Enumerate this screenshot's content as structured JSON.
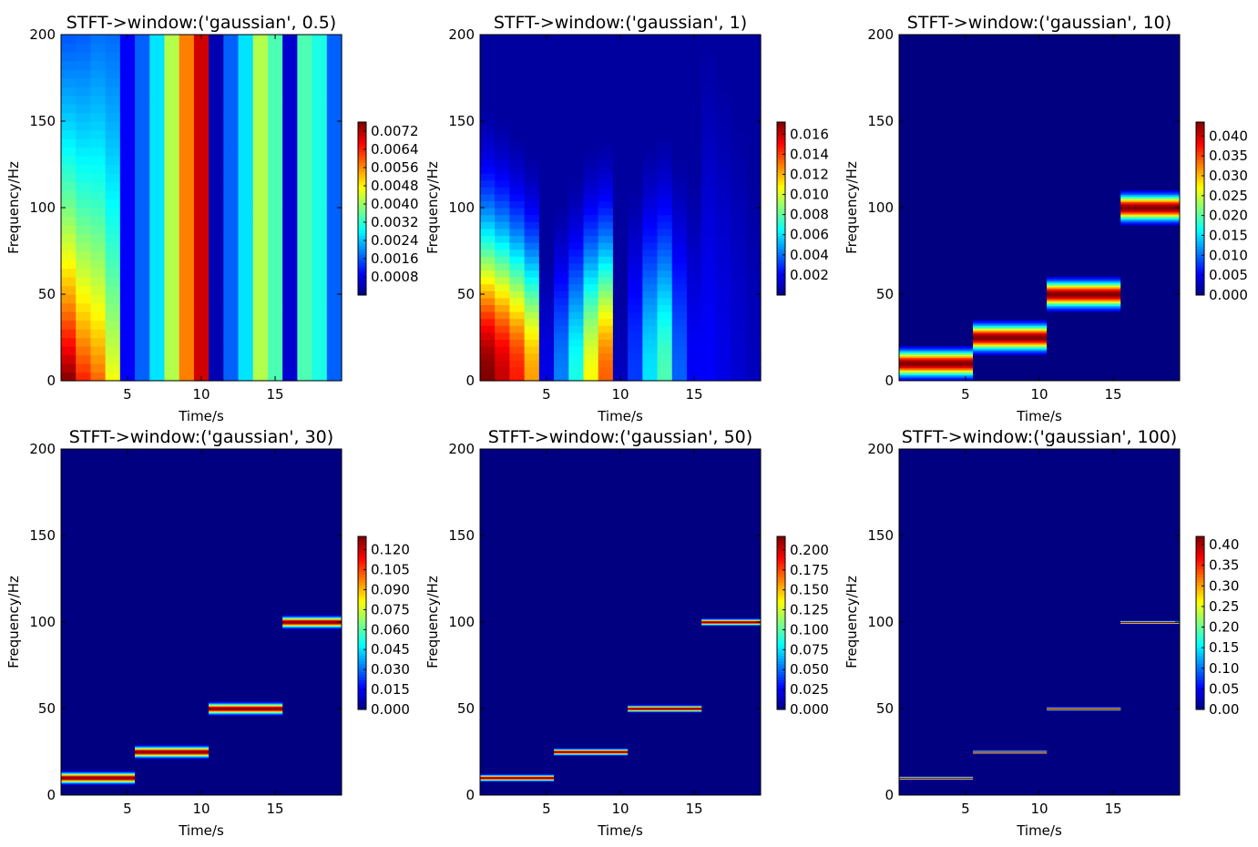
{
  "colors": {
    "jet_low": "#00007f",
    "jet_high": "#7f0000",
    "background": "#ffffff"
  },
  "chart_data": [
    {
      "type": "heatmap",
      "title": "STFT->window:('gaussian', 0.5)",
      "xlabel": "Time/s",
      "ylabel": "Frequency/Hz",
      "xticks": [
        5,
        10,
        15
      ],
      "yticks": [
        0,
        50,
        100,
        150,
        200
      ],
      "xlim": [
        0.5,
        19.5
      ],
      "ylim": [
        0,
        200
      ],
      "mode": "columns",
      "segments": [
        {
          "t0": 0.5,
          "t1": 5.5,
          "freq": 10
        },
        {
          "t0": 5.5,
          "t1": 10.5,
          "freq": 25
        },
        {
          "t0": 10.5,
          "t1": 15.5,
          "freq": 50
        },
        {
          "t0": 15.5,
          "t1": 19.5,
          "freq": 100
        }
      ],
      "column_values": [
        1.0,
        0.85,
        0.78,
        0.62,
        0.12,
        0.22,
        0.35,
        0.55,
        0.75,
        0.92,
        0.05,
        0.22,
        0.35,
        0.55,
        0.45,
        0.08,
        0.45,
        0.4,
        0.22
      ],
      "column_decay": [
        0.55,
        0.45,
        0.35,
        0.2,
        0,
        0,
        0,
        0,
        0,
        0,
        0,
        0,
        0,
        0,
        0,
        0,
        0,
        0,
        0
      ],
      "colorbar": {
        "ticks": [
          "0.0008",
          "0.0016",
          "0.0024",
          "0.0032",
          "0.0040",
          "0.0048",
          "0.0056",
          "0.0064",
          "0.0072"
        ],
        "tick_values": [
          0.0008,
          0.0016,
          0.0024,
          0.0032,
          0.004,
          0.0048,
          0.0056,
          0.0064,
          0.0072
        ],
        "vmin": 0.0,
        "vmax": 0.0076
      }
    },
    {
      "type": "heatmap",
      "title": "STFT->window:('gaussian', 1)",
      "xlabel": "Time/s",
      "ylabel": "Frequency/Hz",
      "xticks": [
        5,
        10,
        15
      ],
      "yticks": [
        0,
        50,
        100,
        150,
        200
      ],
      "xlim": [
        0.5,
        19.5
      ],
      "ylim": [
        0,
        200
      ],
      "mode": "lowfreq",
      "segments": [
        {
          "t0": 0.5,
          "t1": 5.5,
          "freq": 10
        },
        {
          "t0": 5.5,
          "t1": 10.5,
          "freq": 25
        },
        {
          "t0": 10.5,
          "t1": 15.5,
          "freq": 50
        },
        {
          "t0": 15.5,
          "t1": 19.5,
          "freq": 100
        }
      ],
      "column_values": [
        1.0,
        0.93,
        0.85,
        0.72,
        0.1,
        0.25,
        0.4,
        0.62,
        0.78,
        0.06,
        0.18,
        0.35,
        0.45,
        0.22,
        0.12,
        0.12,
        0.1,
        0.08,
        0.06
      ],
      "column_spread": [
        60,
        58,
        55,
        52,
        45,
        50,
        52,
        55,
        55,
        40,
        60,
        62,
        62,
        65,
        70,
        120,
        115,
        110,
        100
      ],
      "colorbar": {
        "ticks": [
          "0.002",
          "0.004",
          "0.006",
          "0.008",
          "0.010",
          "0.012",
          "0.014",
          "0.016"
        ],
        "tick_values": [
          0.002,
          0.004,
          0.006,
          0.008,
          0.01,
          0.012,
          0.014,
          0.016
        ],
        "vmin": 0.0,
        "vmax": 0.0172
      }
    },
    {
      "type": "heatmap",
      "title": "STFT->window:('gaussian', 10)",
      "xlabel": "Time/s",
      "ylabel": "Frequency/Hz",
      "xticks": [
        5,
        10,
        15
      ],
      "yticks": [
        0,
        50,
        100,
        150,
        200
      ],
      "xlim": [
        0.5,
        19.5
      ],
      "ylim": [
        0,
        200
      ],
      "mode": "bands",
      "band_halfwidth": 10,
      "segments": [
        {
          "t0": 0.5,
          "t1": 5.5,
          "freq": 10
        },
        {
          "t0": 5.5,
          "t1": 10.5,
          "freq": 25
        },
        {
          "t0": 10.5,
          "t1": 15.5,
          "freq": 50
        },
        {
          "t0": 15.5,
          "t1": 19.5,
          "freq": 100
        }
      ],
      "colorbar": {
        "ticks": [
          "0.000",
          "0.005",
          "0.010",
          "0.015",
          "0.020",
          "0.025",
          "0.030",
          "0.035",
          "0.040"
        ],
        "tick_values": [
          0.0,
          0.005,
          0.01,
          0.015,
          0.02,
          0.025,
          0.03,
          0.035,
          0.04
        ],
        "vmin": 0.0,
        "vmax": 0.0435
      }
    },
    {
      "type": "heatmap",
      "title": "STFT->window:('gaussian', 30)",
      "xlabel": "Time/s",
      "ylabel": "Frequency/Hz",
      "xticks": [
        5,
        10,
        15
      ],
      "yticks": [
        0,
        50,
        100,
        150,
        200
      ],
      "xlim": [
        0.5,
        19.5
      ],
      "ylim": [
        0,
        200
      ],
      "mode": "bands",
      "band_halfwidth": 4,
      "segments": [
        {
          "t0": 0.5,
          "t1": 5.5,
          "freq": 10
        },
        {
          "t0": 5.5,
          "t1": 10.5,
          "freq": 25
        },
        {
          "t0": 10.5,
          "t1": 15.5,
          "freq": 50
        },
        {
          "t0": 15.5,
          "t1": 19.5,
          "freq": 100
        }
      ],
      "colorbar": {
        "ticks": [
          "0.000",
          "0.015",
          "0.030",
          "0.045",
          "0.060",
          "0.075",
          "0.090",
          "0.105",
          "0.120"
        ],
        "tick_values": [
          0.0,
          0.015,
          0.03,
          0.045,
          0.06,
          0.075,
          0.09,
          0.105,
          0.12
        ],
        "vmin": 0.0,
        "vmax": 0.13
      }
    },
    {
      "type": "heatmap",
      "title": "STFT->window:('gaussian', 50)",
      "xlabel": "Time/s",
      "ylabel": "Frequency/Hz",
      "xticks": [
        5,
        10,
        15
      ],
      "yticks": [
        0,
        50,
        100,
        150,
        200
      ],
      "xlim": [
        0.5,
        19.5
      ],
      "ylim": [
        0,
        200
      ],
      "mode": "bands",
      "band_halfwidth": 2.2,
      "segments": [
        {
          "t0": 0.5,
          "t1": 5.5,
          "freq": 10
        },
        {
          "t0": 5.5,
          "t1": 10.5,
          "freq": 25
        },
        {
          "t0": 10.5,
          "t1": 15.5,
          "freq": 50
        },
        {
          "t0": 15.5,
          "t1": 19.5,
          "freq": 100
        }
      ],
      "colorbar": {
        "ticks": [
          "0.000",
          "0.025",
          "0.050",
          "0.075",
          "0.100",
          "0.125",
          "0.150",
          "0.175",
          "0.200"
        ],
        "tick_values": [
          0.0,
          0.025,
          0.05,
          0.075,
          0.1,
          0.125,
          0.15,
          0.175,
          0.2
        ],
        "vmin": 0.0,
        "vmax": 0.217
      }
    },
    {
      "type": "heatmap",
      "title": "STFT->window:('gaussian', 100)",
      "xlabel": "Time/s",
      "ylabel": "Frequency/Hz",
      "xticks": [
        5,
        10,
        15
      ],
      "yticks": [
        0,
        50,
        100,
        150,
        200
      ],
      "xlim": [
        0.5,
        19.5
      ],
      "ylim": [
        0,
        200
      ],
      "mode": "bands",
      "band_halfwidth": 1.0,
      "segments": [
        {
          "t0": 0.5,
          "t1": 5.5,
          "freq": 10
        },
        {
          "t0": 5.5,
          "t1": 10.5,
          "freq": 25
        },
        {
          "t0": 10.5,
          "t1": 15.5,
          "freq": 50
        },
        {
          "t0": 15.5,
          "t1": 19.5,
          "freq": 100
        }
      ],
      "colorbar": {
        "ticks": [
          "0.00",
          "0.05",
          "0.10",
          "0.15",
          "0.20",
          "0.25",
          "0.30",
          "0.35",
          "0.40"
        ],
        "tick_values": [
          0.0,
          0.05,
          0.1,
          0.15,
          0.2,
          0.25,
          0.3,
          0.35,
          0.4
        ],
        "vmin": 0.0,
        "vmax": 0.42
      }
    }
  ]
}
